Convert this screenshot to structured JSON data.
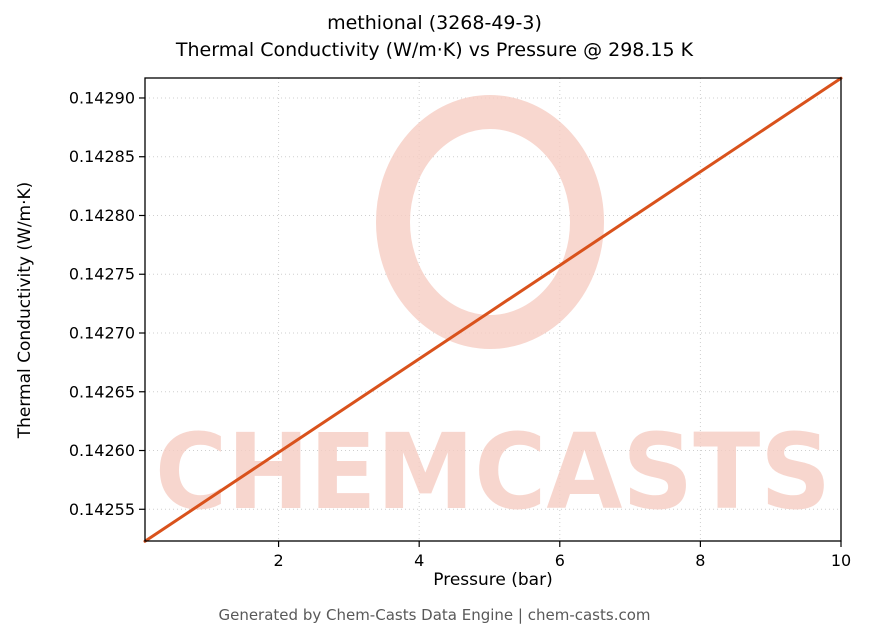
{
  "title": {
    "line1": "methional (3268-49-3)",
    "line2": "Thermal Conductivity (W/m·K) vs Pressure @ 298.15 K"
  },
  "footer": "Generated by Chem-Casts Data Engine | chem-casts.com",
  "watermark": {
    "text": "CHEMCASTS",
    "color": "#f6cdc3"
  },
  "chart_data": {
    "type": "line",
    "title": "methional (3268-49-3) — Thermal Conductivity (W/m·K) vs Pressure @ 298.15 K",
    "xlabel": "Pressure (bar)",
    "ylabel": "Thermal Conductivity (W/m·K)",
    "xlim": [
      0.1,
      10
    ],
    "ylim": [
      0.142523,
      0.142917
    ],
    "xticks": [
      2,
      4,
      6,
      8,
      10
    ],
    "yticks": [
      0.14255,
      0.1426,
      0.14265,
      0.1427,
      0.14275,
      0.1428,
      0.14285,
      0.1429
    ],
    "grid": true,
    "legend": false,
    "line_color": "#d9521c",
    "series": [
      {
        "name": "Thermal Conductivity",
        "x": [
          0.1,
          1,
          2,
          3,
          4,
          5,
          6,
          7,
          8,
          9,
          10
        ],
        "y": [
          0.1425228,
          0.1425586,
          0.1425984,
          0.1426382,
          0.142678,
          0.1427178,
          0.1427576,
          0.1427974,
          0.1428372,
          0.142877,
          0.1429168
        ]
      }
    ]
  }
}
